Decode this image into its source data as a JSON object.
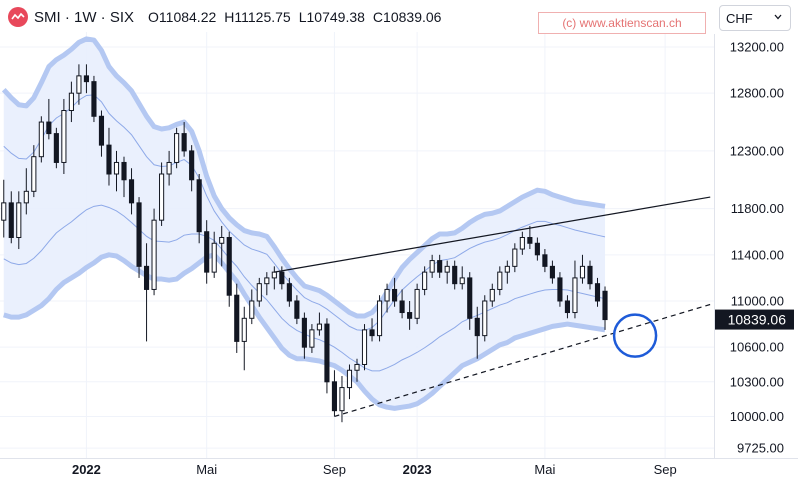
{
  "header": {
    "symbol": "SMI · 1W · SIX",
    "ohlc": [
      {
        "label": "O",
        "value": "11084.22"
      },
      {
        "label": "H",
        "value": "11125.75"
      },
      {
        "label": "L",
        "value": "10749.38"
      },
      {
        "label": "C",
        "value": "10839.06"
      }
    ]
  },
  "watermark": "(c) www.aktienscan.ch",
  "currency": {
    "selected": "CHF"
  },
  "colors": {
    "candle": "#131722",
    "band_outer": "#b4c8f2",
    "band_fill": "#e8eefd",
    "band_inner": "#8ea9e8",
    "last_price_bg": "#131722",
    "circle": "#1e5bd8"
  },
  "chart_data": {
    "type": "candlestick",
    "interval": "1W",
    "x_ticks": [
      "2022",
      "Mai",
      "Sep",
      "2023",
      "Mai",
      "Sep"
    ],
    "y_ticks": [
      13200,
      12800,
      12300,
      11800,
      11400,
      11000,
      10600,
      10300,
      10000,
      9725
    ],
    "y_axis": "right",
    "ylim": [
      9640,
      13330
    ],
    "last_price": "10839.06",
    "candles": [
      [
        11700,
        12050,
        11550,
        11850
      ],
      [
        11850,
        11950,
        11500,
        11550
      ],
      [
        11550,
        11950,
        11450,
        11850
      ],
      [
        11850,
        12150,
        11750,
        11950
      ],
      [
        11950,
        12350,
        11900,
        12250
      ],
      [
        12250,
        12600,
        12200,
        12550
      ],
      [
        12550,
        12750,
        12400,
        12450
      ],
      [
        12450,
        12500,
        12150,
        12200
      ],
      [
        12200,
        12750,
        12100,
        12650
      ],
      [
        12650,
        12900,
        12550,
        12800
      ],
      [
        12800,
        13050,
        12700,
        12950
      ],
      [
        12950,
        13050,
        12800,
        12900
      ],
      [
        12900,
        12950,
        12550,
        12600
      ],
      [
        12600,
        12650,
        12250,
        12350
      ],
      [
        12350,
        12500,
        12000,
        12100
      ],
      [
        12100,
        12300,
        11950,
        12200
      ],
      [
        12200,
        12250,
        11900,
        12050
      ],
      [
        12050,
        12150,
        11750,
        11850
      ],
      [
        11850,
        11900,
        11200,
        11300
      ],
      [
        11300,
        11500,
        10650,
        11100
      ],
      [
        11100,
        11800,
        11050,
        11700
      ],
      [
        11700,
        12200,
        11650,
        12100
      ],
      [
        12100,
        12300,
        12000,
        12200
      ],
      [
        12200,
        12500,
        12150,
        12450
      ],
      [
        12450,
        12550,
        12250,
        12300
      ],
      [
        12300,
        12350,
        11950,
        12050
      ],
      [
        12050,
        12100,
        11500,
        11600
      ],
      [
        11600,
        11700,
        11150,
        11250
      ],
      [
        11250,
        11600,
        11200,
        11500
      ],
      [
        11500,
        11650,
        11300,
        11550
      ],
      [
        11550,
        11600,
        10950,
        11050
      ],
      [
        11050,
        11150,
        10550,
        10650
      ],
      [
        10650,
        10950,
        10400,
        10850
      ],
      [
        10850,
        11100,
        10800,
        11000
      ],
      [
        11000,
        11200,
        10950,
        11150
      ],
      [
        11150,
        11250,
        11050,
        11200
      ],
      [
        11200,
        11300,
        11100,
        11250
      ],
      [
        11250,
        11300,
        11100,
        11150
      ],
      [
        11150,
        11200,
        10950,
        11000
      ],
      [
        11000,
        11050,
        10800,
        10850
      ],
      [
        10850,
        10900,
        10500,
        10600
      ],
      [
        10600,
        10800,
        10550,
        10750
      ],
      [
        10750,
        10900,
        10700,
        10800
      ],
      [
        10800,
        10850,
        10200,
        10300
      ],
      [
        10300,
        10400,
        10000,
        10050
      ],
      [
        10050,
        10350,
        9950,
        10250
      ],
      [
        10250,
        10450,
        10150,
        10400
      ],
      [
        10400,
        10500,
        10300,
        10450
      ],
      [
        10450,
        10800,
        10400,
        10750
      ],
      [
        10750,
        10850,
        10650,
        10700
      ],
      [
        10700,
        11050,
        10650,
        11000
      ],
      [
        11000,
        11150,
        10900,
        11100
      ],
      [
        11100,
        11200,
        10950,
        11000
      ],
      [
        11000,
        11100,
        10850,
        10900
      ],
      [
        10900,
        11000,
        10750,
        10850
      ],
      [
        10850,
        11150,
        10800,
        11100
      ],
      [
        11100,
        11300,
        11050,
        11250
      ],
      [
        11250,
        11400,
        11200,
        11350
      ],
      [
        11350,
        11400,
        11200,
        11250
      ],
      [
        11250,
        11350,
        11150,
        11300
      ],
      [
        11300,
        11350,
        11100,
        11150
      ],
      [
        11150,
        11300,
        11100,
        11200
      ],
      [
        11200,
        11250,
        10750,
        10850
      ],
      [
        10850,
        10950,
        10500,
        10700
      ],
      [
        10700,
        11050,
        10650,
        11000
      ],
      [
        11000,
        11150,
        10950,
        11100
      ],
      [
        11100,
        11300,
        11050,
        11250
      ],
      [
        11250,
        11350,
        11150,
        11300
      ],
      [
        11300,
        11500,
        11250,
        11450
      ],
      [
        11450,
        11600,
        11400,
        11550
      ],
      [
        11550,
        11650,
        11450,
        11500
      ],
      [
        11500,
        11550,
        11350,
        11400
      ],
      [
        11400,
        11450,
        11250,
        11300
      ],
      [
        11300,
        11350,
        11150,
        11200
      ],
      [
        11200,
        11250,
        10950,
        11000
      ],
      [
        11000,
        11050,
        10850,
        10900
      ],
      [
        10900,
        11350,
        10850,
        11200
      ],
      [
        11200,
        11400,
        11150,
        11300
      ],
      [
        11300,
        11350,
        11100,
        11150
      ],
      [
        11150,
        11200,
        10950,
        11000
      ],
      [
        11084.22,
        11125.75,
        10749.38,
        10839.06
      ]
    ],
    "bollinger": {
      "upper": [
        12830,
        12760,
        12700,
        12690,
        12760,
        12890,
        13030,
        13090,
        13130,
        13180,
        13240,
        13270,
        13260,
        13170,
        13030,
        12950,
        12890,
        12820,
        12710,
        12600,
        12510,
        12490,
        12500,
        12530,
        12550,
        12470,
        12300,
        12080,
        11910,
        11800,
        11720,
        11660,
        11610,
        11590,
        11580,
        11560,
        11470,
        11370,
        11280,
        11200,
        11130,
        11110,
        11090,
        11050,
        11000,
        10950,
        10900,
        10870,
        10870,
        10900,
        10970,
        11080,
        11190,
        11290,
        11360,
        11420,
        11480,
        11540,
        11580,
        11580,
        11590,
        11630,
        11680,
        11720,
        11750,
        11760,
        11780,
        11820,
        11860,
        11900,
        11930,
        11960,
        11950,
        11920,
        11900,
        11880,
        11860,
        11850,
        11840,
        11830,
        11820
      ],
      "middle": [
        11850,
        11800,
        11770,
        11770,
        11820,
        11910,
        12010,
        12080,
        12120,
        12170,
        12240,
        12290,
        12310,
        12280,
        12220,
        12170,
        12120,
        12060,
        11980,
        11900,
        11850,
        11840,
        11840,
        11870,
        11900,
        11880,
        11830,
        11740,
        11650,
        11570,
        11490,
        11430,
        11360,
        11310,
        11280,
        11250,
        11180,
        11110,
        11050,
        10990,
        10930,
        10880,
        10850,
        10810,
        10760,
        10710,
        10660,
        10630,
        10620,
        10640,
        10690,
        10760,
        10830,
        10900,
        10950,
        11000,
        11040,
        11080,
        11120,
        11140,
        11160,
        11200,
        11230,
        11250,
        11270,
        11290,
        11310,
        11330,
        11360,
        11380,
        11400,
        11420,
        11430,
        11420,
        11410,
        11390,
        11370,
        11350,
        11330,
        11310,
        11290
      ],
      "lower": [
        10880,
        10860,
        10860,
        10880,
        10920,
        10960,
        11020,
        11100,
        11160,
        11200,
        11240,
        11290,
        11330,
        11380,
        11400,
        11390,
        11350,
        11300,
        11260,
        11220,
        11190,
        11190,
        11180,
        11190,
        11240,
        11280,
        11330,
        11380,
        11400,
        11330,
        11250,
        11170,
        11060,
        10960,
        10860,
        10770,
        10680,
        10590,
        10530,
        10500,
        10500,
        10490,
        10480,
        10460,
        10440,
        10400,
        10350,
        10300,
        10220,
        10150,
        10100,
        10080,
        10070,
        10080,
        10090,
        10110,
        10150,
        10200,
        10260,
        10320,
        10380,
        10440,
        10470,
        10500,
        10540,
        10580,
        10620,
        10640,
        10680,
        10700,
        10720,
        10740,
        10760,
        10780,
        10790,
        10800,
        10790,
        10780,
        10770,
        10760,
        10750
      ]
    },
    "trendlines": [
      {
        "style": "solid",
        "from": {
          "index": 36,
          "value": 11250
        },
        "to": {
          "index": 94,
          "value": 11900
        }
      },
      {
        "style": "dashed",
        "from": {
          "index": 44,
          "value": 10000
        },
        "to": {
          "index": 94,
          "value": 10970
        }
      }
    ],
    "highlight_circle": {
      "index": 84,
      "value": 10700
    }
  }
}
